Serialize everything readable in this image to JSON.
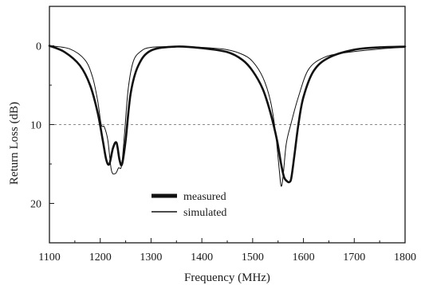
{
  "chart_data": {
    "type": "line",
    "xlabel": "Frequency (MHz)",
    "ylabel": "Return Loss (dB)",
    "xlim": [
      1100,
      1800
    ],
    "ylim": [
      25,
      -5
    ],
    "y_inverted": true,
    "x_ticks": [
      1100,
      1200,
      1300,
      1400,
      1500,
      1600,
      1700,
      1800
    ],
    "x_tick_labels": [
      "1100",
      "1200",
      "1300",
      "1400",
      "1500",
      "1600",
      "1700",
      "1800"
    ],
    "y_ticks": [
      0,
      10,
      20
    ],
    "y_tick_labels": [
      "0",
      "10",
      "20"
    ],
    "reference_line": {
      "y": 10,
      "style": "dashed"
    },
    "grid": false,
    "legend_position": "lower-left",
    "series": [
      {
        "name": "measured",
        "line": "thick",
        "x": [
          1100,
          1130,
          1160,
          1180,
          1195,
          1205,
          1212,
          1218,
          1225,
          1232,
          1238,
          1243,
          1250,
          1260,
          1275,
          1300,
          1350,
          1400,
          1450,
          1480,
          1500,
          1520,
          1535,
          1548,
          1556,
          1562,
          1568,
          1572,
          1576,
          1582,
          1590,
          1600,
          1620,
          1650,
          1700,
          1750,
          1800
        ],
        "y": [
          0,
          0.8,
          2.5,
          5,
          8.5,
          12,
          14.5,
          15,
          13,
          12.3,
          14.5,
          15,
          12,
          6,
          2.5,
          0.6,
          0.1,
          0.3,
          0.8,
          1.8,
          3.2,
          5.5,
          8.5,
          12,
          15,
          16.7,
          17.2,
          17.3,
          16.8,
          14,
          10,
          6.5,
          3.2,
          1.5,
          0.5,
          0.2,
          0.1
        ]
      },
      {
        "name": "simulated",
        "line": "thin",
        "x": [
          1100,
          1140,
          1170,
          1185,
          1195,
          1202,
          1208,
          1215,
          1222,
          1230,
          1236,
          1242,
          1248,
          1255,
          1265,
          1280,
          1300,
          1350,
          1400,
          1450,
          1480,
          1500,
          1520,
          1535,
          1545,
          1552,
          1556,
          1560,
          1566,
          1575,
          1590,
          1610,
          1640,
          1680,
          1750,
          1800
        ],
        "y": [
          0,
          0.4,
          1.8,
          4,
          7,
          10,
          10.3,
          12,
          15.8,
          16.2,
          15.5,
          15.2,
          11,
          5.5,
          2,
          0.7,
          0.2,
          0.1,
          0.2,
          0.5,
          1.1,
          2,
          4,
          7,
          11,
          15.5,
          17.8,
          16.5,
          12.5,
          10,
          6.5,
          3,
          1.5,
          0.9,
          0.4,
          0.2
        ]
      }
    ],
    "legend": [
      {
        "label": "measured",
        "line": "thick"
      },
      {
        "label": "simulated",
        "line": "thin"
      }
    ]
  }
}
